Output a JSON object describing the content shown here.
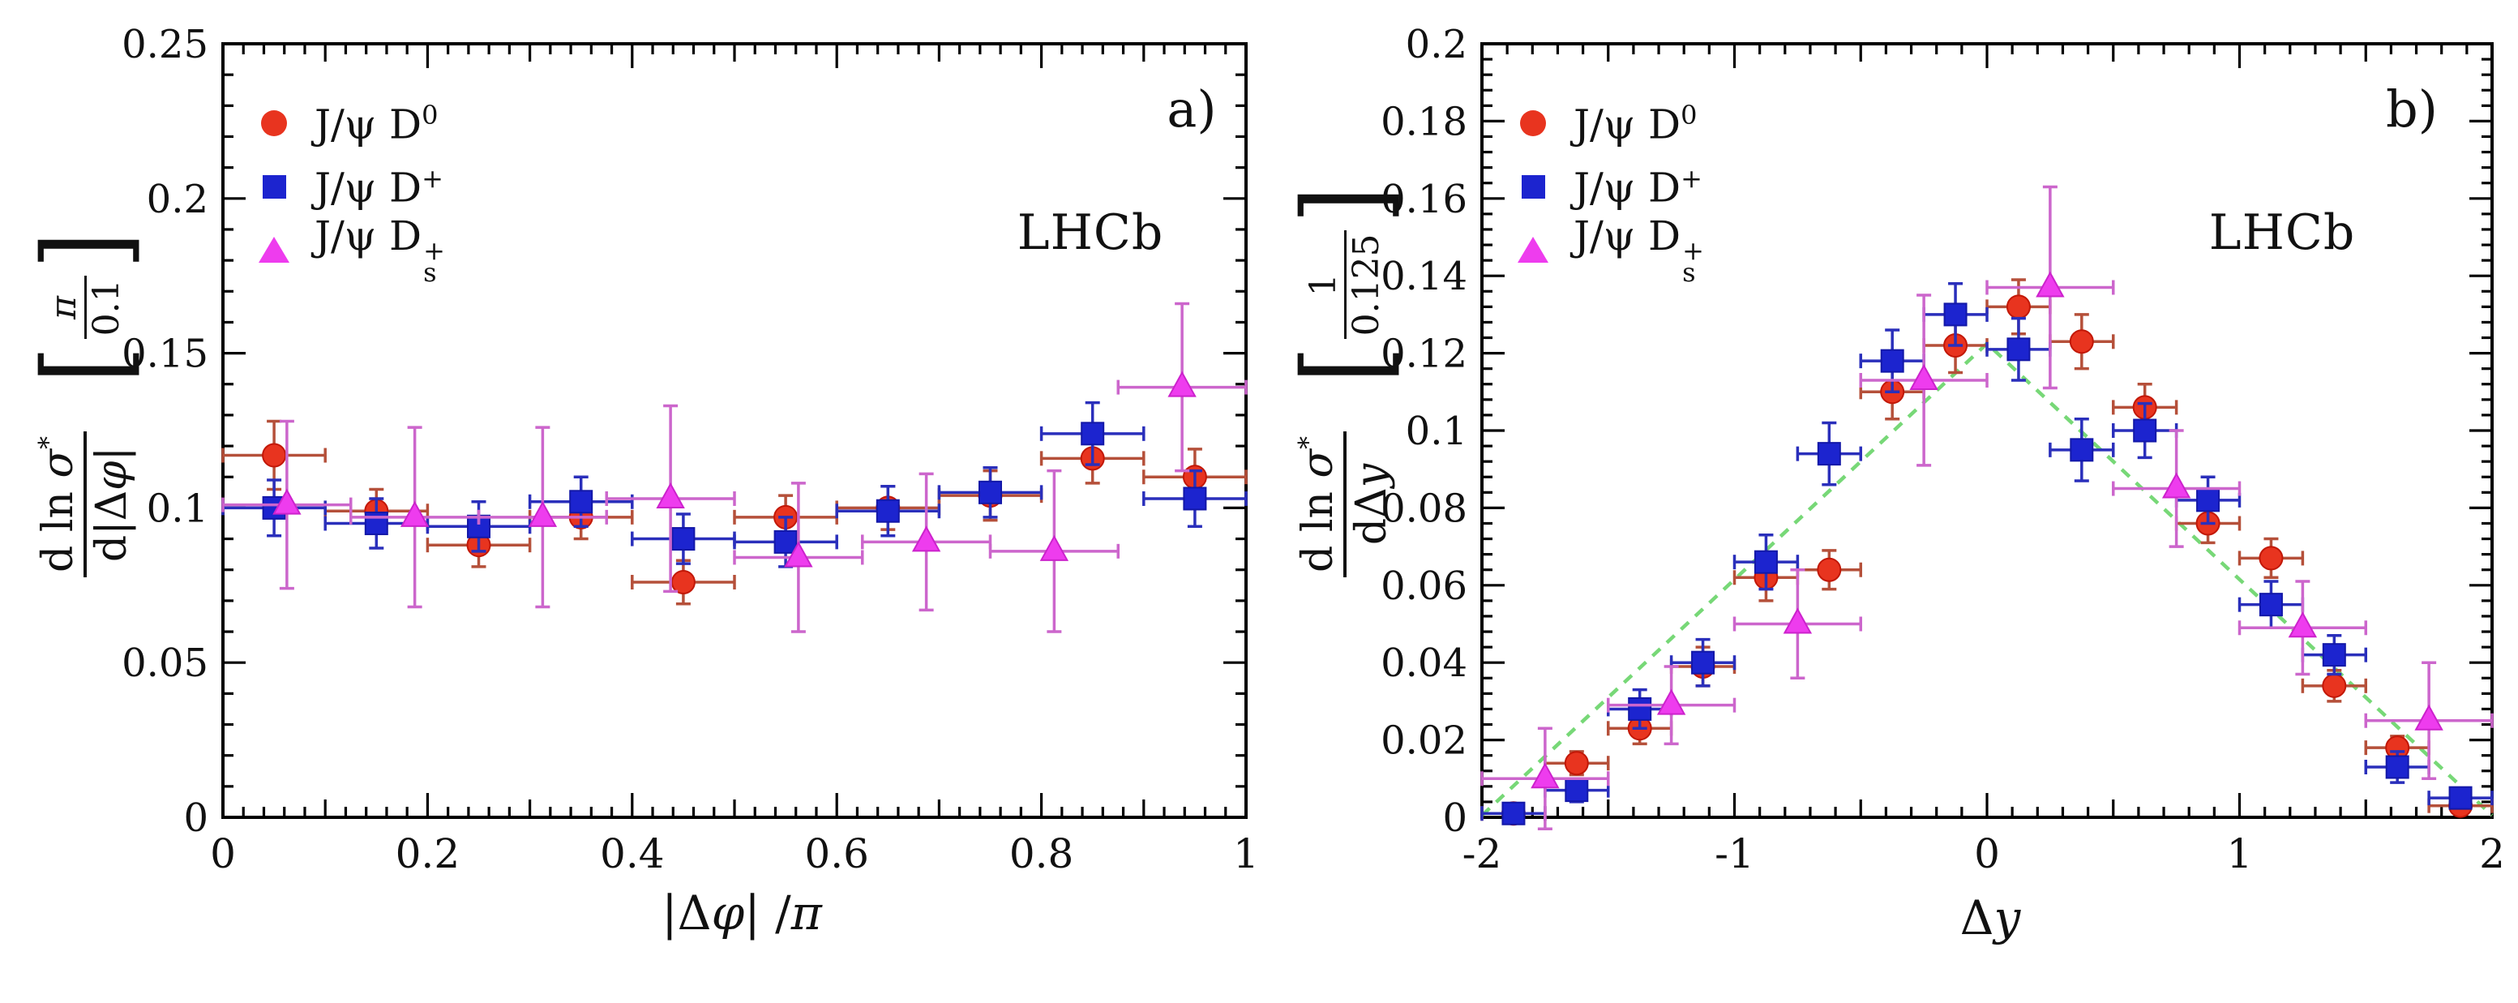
{
  "figure": {
    "background": "#ffffff",
    "frame_color": "#000000",
    "text_color": "#111111"
  },
  "chart_data": [
    {
      "id": "a",
      "type": "scatter",
      "panel_label": "a)",
      "experiment": "LHCb",
      "xlabel_parts": {
        "p1": "|Δ",
        "p2": "φ",
        "p3": "| /",
        "p4": "π"
      },
      "ylabel": {
        "num_pre": "d ln ",
        "num_it": "σ",
        "num_sup": "*",
        "den_pre": "d|Δ",
        "den_it": "φ",
        "den_post": "|",
        "unit_num": "π",
        "unit_den": "0.1"
      },
      "xlim": [
        0,
        1
      ],
      "ylim": [
        0,
        0.25
      ],
      "grid": false,
      "legend_position": "top-left",
      "xticks": {
        "values": [
          0,
          0.2,
          0.4,
          0.6,
          0.8,
          1
        ],
        "labels": [
          "0",
          "0.2",
          "0.4",
          "0.6",
          "0.8",
          "1"
        ],
        "medium_step": 0.1,
        "minor_step": 0.02
      },
      "yticks": {
        "values": [
          0,
          0.05,
          0.1,
          0.15,
          0.2,
          0.25
        ],
        "labels": [
          "0",
          "0.05",
          "0.1",
          "0.15",
          "0.2",
          "0.25"
        ],
        "minor_step": 0.01
      },
      "series": [
        {
          "name": "jpsi-d0",
          "legend": {
            "main": "J/ψ D",
            "sup": "0",
            "sub": ""
          },
          "marker": "circle",
          "color": "#e8341f",
          "edge": "#c21807",
          "err_color": "#b5503a",
          "x": [
            0.05,
            0.15,
            0.25,
            0.35,
            0.45,
            0.55,
            0.65,
            0.75,
            0.85,
            0.95
          ],
          "y": [
            0.117,
            0.099,
            0.088,
            0.097,
            0.076,
            0.097,
            0.1,
            0.104,
            0.116,
            0.11
          ],
          "xerr": 0.05,
          "yerr": [
            0.011,
            0.007,
            0.007,
            0.007,
            0.007,
            0.007,
            0.007,
            0.008,
            0.008,
            0.009
          ]
        },
        {
          "name": "jpsi-dplus",
          "legend": {
            "main": "J/ψ D",
            "sup": "+",
            "sub": ""
          },
          "marker": "square",
          "color": "#1c24cf",
          "edge": "#1318a8",
          "err_color": "#2a2fbb",
          "x": [
            0.05,
            0.15,
            0.25,
            0.35,
            0.45,
            0.55,
            0.65,
            0.75,
            0.85,
            0.95
          ],
          "y": [
            0.1,
            0.095,
            0.094,
            0.102,
            0.09,
            0.089,
            0.099,
            0.105,
            0.124,
            0.103
          ],
          "xerr": 0.05,
          "yerr": [
            0.009,
            0.008,
            0.008,
            0.008,
            0.008,
            0.008,
            0.008,
            0.008,
            0.01,
            0.009
          ]
        },
        {
          "name": "jpsi-ds",
          "legend": {
            "main": "J/ψ D",
            "sup": "+",
            "sub": "s"
          },
          "marker": "triangle",
          "color": "#ee3cee",
          "edge": "#cc22cc",
          "err_color": "#cc66cc",
          "x": [
            0.0625,
            0.1875,
            0.3125,
            0.4375,
            0.5625,
            0.6875,
            0.8125,
            0.9375
          ],
          "y": [
            0.101,
            0.097,
            0.097,
            0.103,
            0.084,
            0.089,
            0.086,
            0.139
          ],
          "xerr": 0.0625,
          "yerr": [
            0.027,
            0.029,
            0.029,
            0.03,
            0.024,
            0.022,
            0.026,
            0.027
          ]
        }
      ]
    },
    {
      "id": "b",
      "type": "scatter",
      "panel_label": "b)",
      "experiment": "LHCb",
      "xlabel_parts": {
        "p1": "Δ",
        "p2": "y",
        "p3": "",
        "p4": ""
      },
      "ylabel": {
        "num_pre": "d ln ",
        "num_it": "σ",
        "num_sup": "*",
        "den_pre": "dΔ",
        "den_it": "y",
        "den_post": "",
        "unit_num": "1",
        "unit_den": "0.125"
      },
      "xlim": [
        -2,
        2
      ],
      "ylim": [
        0,
        0.2
      ],
      "grid": false,
      "legend_position": "top-left",
      "xticks": {
        "values": [
          -2,
          -1,
          0,
          1,
          2
        ],
        "labels": [
          "-2",
          "-1",
          "0",
          "1",
          "2"
        ],
        "medium_step": 0.5,
        "minor_step": 0.1
      },
      "yticks": {
        "values": [
          0,
          0.02,
          0.04,
          0.06,
          0.08,
          0.1,
          0.12,
          0.14,
          0.16,
          0.18,
          0.2
        ],
        "labels": [
          "0",
          "0.02",
          "0.04",
          "0.06",
          "0.08",
          "0.1",
          "0.12",
          "0.14",
          "0.16",
          "0.18",
          "0.2"
        ],
        "minor_step": 0.004
      },
      "reference_line": {
        "style": "dashed",
        "color": "#77d877",
        "points": [
          [
            -2,
            0.0005
          ],
          [
            0,
            0.1225
          ],
          [
            2,
            0.0005
          ]
        ]
      },
      "series": [
        {
          "name": "jpsi-d0",
          "legend": {
            "main": "J/ψ D",
            "sup": "0",
            "sub": ""
          },
          "marker": "circle",
          "color": "#e8341f",
          "edge": "#c21807",
          "err_color": "#b5503a",
          "x": [
            -1.875,
            -1.625,
            -1.375,
            -1.125,
            -0.875,
            -0.625,
            -0.375,
            -0.125,
            0.125,
            0.375,
            0.625,
            0.875,
            1.125,
            1.375,
            1.625,
            1.875
          ],
          "y": [
            0.001,
            0.014,
            0.023,
            0.039,
            0.062,
            0.064,
            0.11,
            0.122,
            0.132,
            0.123,
            0.106,
            0.076,
            0.067,
            0.034,
            0.018,
            0.003
          ],
          "xerr": 0.125,
          "yerr": [
            0.002,
            0.003,
            0.004,
            0.005,
            0.006,
            0.005,
            0.007,
            0.007,
            0.007,
            0.007,
            0.006,
            0.005,
            0.005,
            0.004,
            0.003,
            0.002
          ]
        },
        {
          "name": "jpsi-dplus",
          "legend": {
            "main": "J/ψ D",
            "sup": "+",
            "sub": ""
          },
          "marker": "square",
          "color": "#1c24cf",
          "edge": "#1318a8",
          "err_color": "#2a2fbb",
          "x": [
            -1.875,
            -1.625,
            -1.375,
            -1.125,
            -0.875,
            -0.625,
            -0.375,
            -0.125,
            0.125,
            0.375,
            0.625,
            0.875,
            1.125,
            1.375,
            1.625,
            1.875
          ],
          "y": [
            0.001,
            0.007,
            0.028,
            0.04,
            0.066,
            0.094,
            0.118,
            0.13,
            0.121,
            0.095,
            0.1,
            0.082,
            0.055,
            0.042,
            0.013,
            0.005
          ],
          "xerr": 0.125,
          "yerr": [
            0.002,
            0.003,
            0.005,
            0.006,
            0.007,
            0.008,
            0.008,
            0.008,
            0.008,
            0.008,
            0.007,
            0.006,
            0.006,
            0.005,
            0.004,
            0.002
          ]
        },
        {
          "name": "jpsi-ds",
          "legend": {
            "main": "J/ψ D",
            "sup": "+",
            "sub": "s"
          },
          "marker": "triangle",
          "color": "#ee3cee",
          "edge": "#cc22cc",
          "err_color": "#cc66cc",
          "x": [
            -1.75,
            -1.25,
            -0.75,
            -0.25,
            0.25,
            0.75,
            1.25,
            1.75
          ],
          "y": [
            0.01,
            0.029,
            0.05,
            0.113,
            0.137,
            0.085,
            0.049,
            0.025
          ],
          "xerr": 0.25,
          "yerr": [
            0.013,
            0.01,
            0.014,
            0.022,
            0.026,
            0.015,
            0.012,
            0.015
          ]
        }
      ]
    }
  ]
}
